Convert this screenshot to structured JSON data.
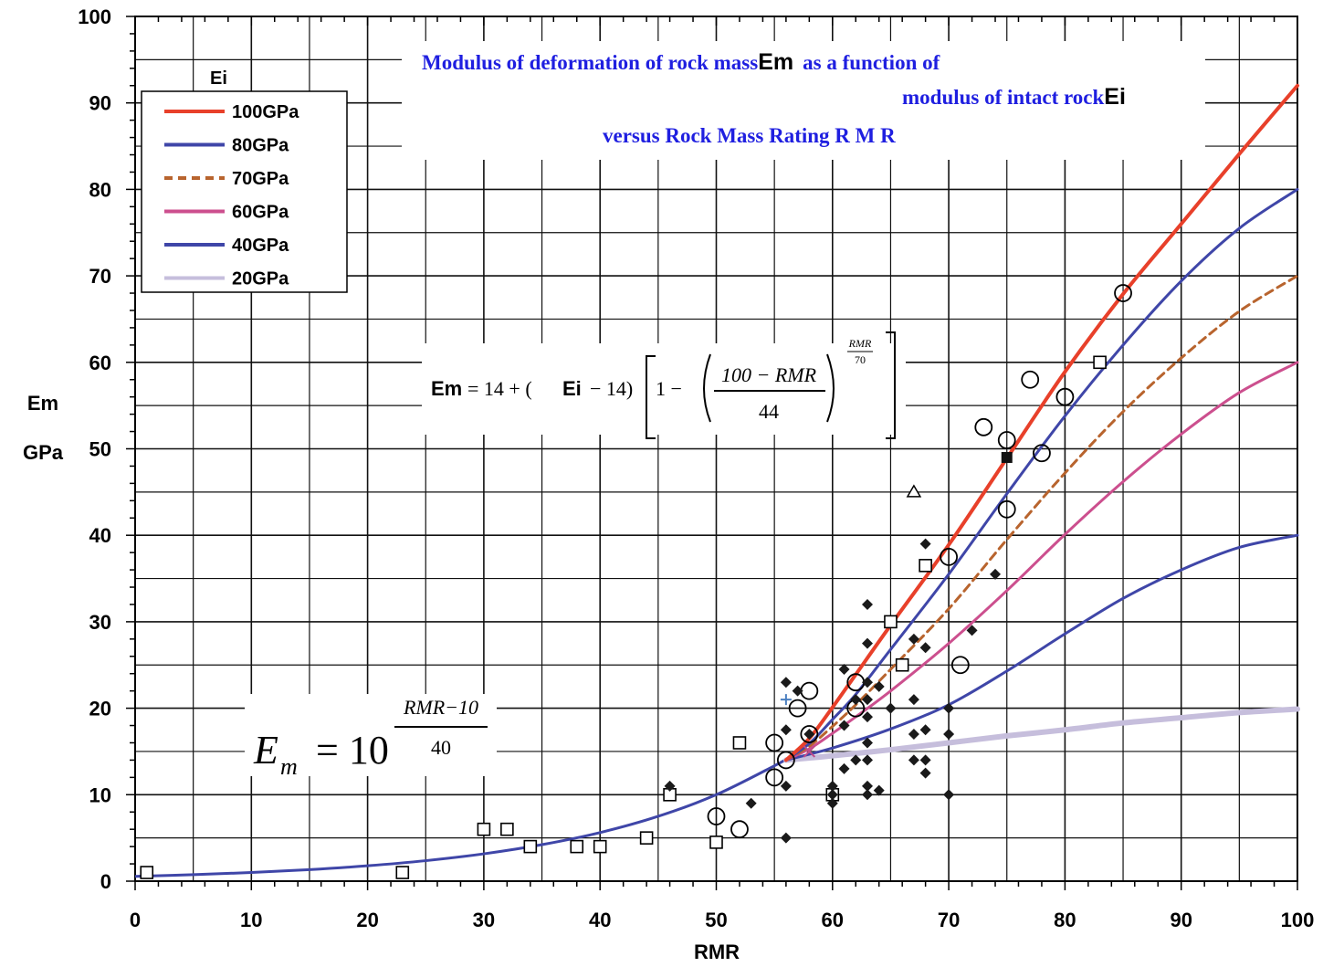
{
  "chart_data": {
    "type": "line",
    "title": {
      "line1_blue": "Modulus of deformation of rock mass",
      "line1_black": "Em",
      "line1_blue2": "as a function of",
      "line2_blue": "modulus of intact rock",
      "line2_black": "Ei",
      "line3_blue": "versus Rock Mass Rating  R M R"
    },
    "xlabel": "RMR",
    "ylabel_line1": "Em",
    "ylabel_line2": "GPa",
    "xlim": [
      0,
      100
    ],
    "ylim": [
      0,
      100
    ],
    "x_ticks": [
      "0",
      "10",
      "20",
      "30",
      "40",
      "50",
      "60",
      "70",
      "80",
      "90",
      "100"
    ],
    "y_ticks": [
      "0",
      "10",
      "20",
      "30",
      "40",
      "50",
      "60",
      "70",
      "80",
      "90",
      "100"
    ],
    "grid": true,
    "legend": {
      "title": "Ei",
      "placement": "top-left",
      "entries": [
        {
          "label": "100GPa",
          "color": "#e8402a",
          "style": "solid"
        },
        {
          "label": "80GPa",
          "color": "#3f46a8",
          "style": "solid"
        },
        {
          "label": "70GPa",
          "color": "#b8642e",
          "style": "dashed"
        },
        {
          "label": "60GPa",
          "color": "#cc4f8e",
          "style": "solid"
        },
        {
          "label": "40GPa",
          "color": "#3f46a8",
          "style": "solid"
        },
        {
          "label": "20GPa",
          "color": "#c6bedc",
          "style": "solid"
        }
      ]
    },
    "formula_upper": {
      "lhs": "Em",
      "eq": "= 14 + (",
      "ei": "Ei",
      "minus": " − 14)",
      "one_minus": "1 −",
      "numerator": "100 − RMR",
      "denominator": "44",
      "exp_num": "RMR",
      "exp_den": "70"
    },
    "formula_lower": {
      "lhs": "E",
      "sub": "m",
      "eq": "= 10",
      "exp_num": "RMR−10",
      "exp_den": "40"
    },
    "base_curve": {
      "name": "Em = 10^((RMR-10)/40)",
      "color": "#3f46a8",
      "x": [
        0,
        5,
        10,
        15,
        20,
        25,
        30,
        35,
        40,
        45,
        50,
        55,
        56
      ],
      "y": [
        0.56,
        0.75,
        1.0,
        1.33,
        1.78,
        2.37,
        3.16,
        4.22,
        5.62,
        7.5,
        10.0,
        13.34,
        14.1
      ]
    },
    "series": [
      {
        "ei": 100,
        "color": "#e8402a",
        "width": 4,
        "dash": "",
        "x": [
          56,
          58,
          60,
          62,
          65,
          70,
          75,
          80,
          85,
          90,
          95,
          100
        ],
        "y": [
          14,
          16.5,
          20.1,
          23.9,
          29.6,
          38.9,
          48.9,
          58.9,
          67.9,
          76.0,
          84.1,
          92.0
        ]
      },
      {
        "ei": 80,
        "color": "#3f46a8",
        "width": 3,
        "dash": "",
        "x": [
          56,
          58,
          60,
          62,
          65,
          70,
          75,
          80,
          85,
          90,
          95,
          100
        ],
        "y": [
          14,
          15.9,
          18.7,
          21.6,
          26.8,
          35.5,
          44.8,
          53.8,
          62.0,
          69.4,
          75.5,
          80.0
        ]
      },
      {
        "ei": 70,
        "color": "#b8642e",
        "width": 3,
        "dash": "9 6",
        "x": [
          56,
          58,
          60,
          62,
          65,
          70,
          75,
          80,
          85,
          90,
          95,
          100
        ],
        "y": [
          14,
          15.6,
          17.9,
          20.4,
          24.5,
          31.5,
          39.5,
          47.2,
          54.3,
          60.5,
          65.9,
          70.0
        ]
      },
      {
        "ei": 60,
        "color": "#cc4f8e",
        "width": 3,
        "dash": "",
        "x": [
          56,
          58,
          60,
          62,
          65,
          70,
          75,
          80,
          85,
          90,
          95,
          100
        ],
        "y": [
          14,
          15.3,
          17.1,
          19.0,
          22.0,
          27.5,
          33.6,
          40.1,
          46.2,
          51.7,
          56.5,
          60.0
        ]
      },
      {
        "ei": 40,
        "color": "#3f46a8",
        "width": 3,
        "dash": "",
        "x": [
          56,
          60,
          65,
          70,
          75,
          80,
          85,
          90,
          95,
          100
        ],
        "y": [
          14,
          15.4,
          17.6,
          20.4,
          24.3,
          28.6,
          32.7,
          36.0,
          38.6,
          40.0
        ]
      },
      {
        "ei": 20,
        "color": "#c6bedc",
        "width": 6,
        "dash": "",
        "x": [
          56,
          60,
          65,
          70,
          75,
          80,
          85,
          90,
          95,
          100
        ],
        "y": [
          14,
          14.5,
          15.2,
          16.0,
          16.8,
          17.5,
          18.3,
          18.9,
          19.5,
          19.9
        ]
      }
    ],
    "points": {
      "open_square": [
        [
          1,
          1
        ],
        [
          23,
          1
        ],
        [
          30,
          6
        ],
        [
          32,
          6
        ],
        [
          34,
          4
        ],
        [
          38,
          4
        ],
        [
          40,
          4
        ],
        [
          44,
          5
        ],
        [
          46,
          10
        ],
        [
          50,
          4.5
        ],
        [
          52,
          16
        ],
        [
          60,
          10
        ],
        [
          65,
          30
        ],
        [
          66,
          25
        ],
        [
          68,
          36.5
        ],
        [
          83,
          60
        ]
      ],
      "open_circle": [
        [
          50,
          7.5
        ],
        [
          52,
          6
        ],
        [
          55,
          12
        ],
        [
          55,
          16
        ],
        [
          56,
          14
        ],
        [
          57,
          20
        ],
        [
          58,
          22
        ],
        [
          58,
          17
        ],
        [
          62,
          23
        ],
        [
          62,
          20
        ],
        [
          70,
          37.5
        ],
        [
          71,
          25
        ],
        [
          73,
          52.5
        ],
        [
          75,
          51
        ],
        [
          75,
          43
        ],
        [
          77,
          58
        ],
        [
          78,
          49.5
        ],
        [
          80,
          56
        ],
        [
          85,
          68
        ]
      ],
      "filled_diamond": [
        [
          46,
          11
        ],
        [
          53,
          9
        ],
        [
          56,
          23
        ],
        [
          56,
          17.5
        ],
        [
          56,
          11
        ],
        [
          56,
          5
        ],
        [
          57,
          22
        ],
        [
          58,
          17
        ],
        [
          60,
          11
        ],
        [
          60,
          10
        ],
        [
          60,
          9
        ],
        [
          61,
          24.5
        ],
        [
          61,
          13
        ],
        [
          61,
          18
        ],
        [
          62,
          14
        ],
        [
          62,
          21
        ],
        [
          63,
          32
        ],
        [
          63,
          27.5
        ],
        [
          63,
          23
        ],
        [
          63,
          21
        ],
        [
          63,
          19
        ],
        [
          63,
          16
        ],
        [
          63,
          14
        ],
        [
          63,
          11
        ],
        [
          63,
          10
        ],
        [
          64,
          10.5
        ],
        [
          64,
          22.5
        ],
        [
          65,
          20
        ],
        [
          67,
          28
        ],
        [
          67,
          21
        ],
        [
          67,
          17
        ],
        [
          67,
          14
        ],
        [
          68,
          39
        ],
        [
          68,
          27
        ],
        [
          68,
          17.5
        ],
        [
          68,
          14
        ],
        [
          68,
          12.5
        ],
        [
          70,
          20
        ],
        [
          70,
          17
        ],
        [
          70,
          10
        ],
        [
          72,
          29
        ],
        [
          74,
          35.5
        ]
      ],
      "filled_square": [
        [
          75,
          49
        ]
      ],
      "open_triangle": [
        [
          67,
          45
        ]
      ],
      "cross": [
        [
          58,
          15
        ]
      ],
      "plus": [
        [
          56,
          21
        ]
      ]
    }
  }
}
